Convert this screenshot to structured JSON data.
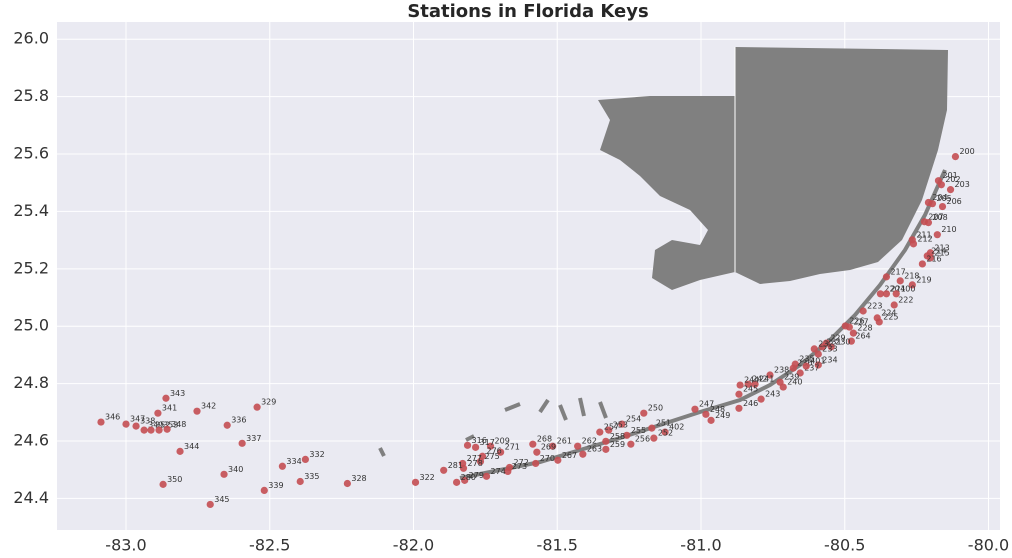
{
  "chart_data": {
    "type": "scatter",
    "title": "Stations in Florida Keys",
    "xlim": [
      -83.24,
      -79.96
    ],
    "ylim": [
      24.29,
      26.06
    ],
    "xticks": [
      {
        "value": -83,
        "label": "-83.0"
      },
      -82.5,
      {
        "value": -82,
        "label": "-82.0"
      },
      -81.5,
      {
        "value": -81,
        "label": "-81.0"
      },
      -80.5,
      {
        "value": -80,
        "label": "-80.0"
      }
    ],
    "yticks": [
      24.4,
      24.6,
      24.8,
      {
        "value": 25,
        "label": "25.0"
      },
      25.2,
      25.4,
      25.6,
      25.8,
      {
        "value": 26,
        "label": "26.0"
      }
    ],
    "grid": true,
    "series": [
      {
        "color": "#c44e52",
        "labels": [
          "200",
          "201",
          "202",
          "203",
          "204",
          "205",
          "206",
          "207",
          "208",
          "210",
          "211",
          "212",
          "213",
          "214",
          "215",
          "216",
          "217",
          "218",
          "219",
          "220",
          "221",
          "400",
          "222",
          "223",
          "224",
          "225",
          "226",
          "227",
          "228",
          "264",
          "229",
          "230",
          "231",
          "232",
          "233",
          "234",
          "235",
          "236",
          "237",
          "401",
          "238",
          "239",
          "240",
          "241",
          "242",
          "244",
          "243",
          "245",
          "246",
          "247",
          "248",
          "249",
          "250",
          "251",
          "402",
          "252",
          "254",
          "253",
          "257",
          "255",
          "256",
          "258",
          "259",
          "262",
          "261",
          "263",
          "267",
          "268",
          "269",
          "270",
          "271",
          "209",
          "316",
          "317",
          "276",
          "275",
          "272",
          "273",
          "274",
          "277",
          "278",
          "279",
          "280",
          "281",
          "322",
          "328",
          "329",
          "332",
          "334",
          "335",
          "336",
          "337",
          "339",
          "340",
          "341",
          "342",
          "343",
          "344",
          "345",
          "346",
          "347",
          "338",
          "349",
          "352",
          "353",
          "348",
          "350"
        ],
        "x": [
          -80.115,
          -80.174,
          -80.164,
          -80.132,
          -80.209,
          -80.195,
          -80.16,
          -80.223,
          -80.209,
          -80.178,
          -80.265,
          -80.261,
          -80.202,
          -80.213,
          -80.202,
          -80.23,
          -80.355,
          -80.307,
          -80.265,
          -80.376,
          -80.355,
          -80.321,
          -80.328,
          -80.436,
          -80.387,
          -80.38,
          -80.498,
          -80.484,
          -80.47,
          -80.477,
          -80.564,
          -80.547,
          -80.578,
          -80.606,
          -80.592,
          -80.592,
          -80.672,
          -80.679,
          -80.655,
          -80.634,
          -80.76,
          -80.725,
          -80.714,
          -80.812,
          -80.836,
          -80.864,
          -80.791,
          -80.868,
          -80.868,
          -81.021,
          -80.983,
          -80.965,
          -81.199,
          -81.171,
          -81.125,
          -81.164,
          -81.275,
          -81.321,
          -81.352,
          -81.258,
          -81.244,
          -81.331,
          -81.331,
          -81.429,
          -81.516,
          -81.411,
          -81.498,
          -81.585,
          -81.571,
          -81.575,
          -81.697,
          -81.732,
          -81.812,
          -81.784,
          -81.76,
          -81.767,
          -81.666,
          -81.672,
          -81.746,
          -81.829,
          -81.826,
          -81.822,
          -81.85,
          -81.895,
          -81.993,
          -82.23,
          -82.544,
          -82.376,
          -82.456,
          -82.394,
          -82.648,
          -82.596,
          -82.519,
          -82.659,
          -82.889,
          -82.753,
          -82.861,
          -82.812,
          -82.707,
          -83.087,
          -83.0,
          -82.965,
          -82.937,
          -82.913,
          -82.885,
          -82.857,
          -82.871
        ],
        "y": [
          25.591,
          25.507,
          25.493,
          25.476,
          25.431,
          25.427,
          25.417,
          25.364,
          25.361,
          25.319,
          25.301,
          25.287,
          25.256,
          25.245,
          25.238,
          25.217,
          25.172,
          25.158,
          25.144,
          25.113,
          25.113,
          25.113,
          25.074,
          25.053,
          25.029,
          25.015,
          25.001,
          24.997,
          24.976,
          24.948,
          24.941,
          24.928,
          24.928,
          24.921,
          24.903,
          24.865,
          24.868,
          24.854,
          24.837,
          24.861,
          24.83,
          24.805,
          24.788,
          24.798,
          24.798,
          24.795,
          24.746,
          24.763,
          24.714,
          24.711,
          24.693,
          24.672,
          24.697,
          24.645,
          24.631,
          24.61,
          24.659,
          24.638,
          24.631,
          24.62,
          24.589,
          24.599,
          24.571,
          24.582,
          24.582,
          24.554,
          24.533,
          24.589,
          24.561,
          24.522,
          24.561,
          24.582,
          24.585,
          24.578,
          24.547,
          24.529,
          24.508,
          24.494,
          24.477,
          24.522,
          24.505,
          24.463,
          24.456,
          24.498,
          24.456,
          24.452,
          24.718,
          24.536,
          24.512,
          24.459,
          24.655,
          24.592,
          24.428,
          24.484,
          24.697,
          24.704,
          24.749,
          24.564,
          24.379,
          24.666,
          24.659,
          24.652,
          24.638,
          24.638,
          24.638,
          24.641,
          24.449
        ]
      }
    ]
  }
}
